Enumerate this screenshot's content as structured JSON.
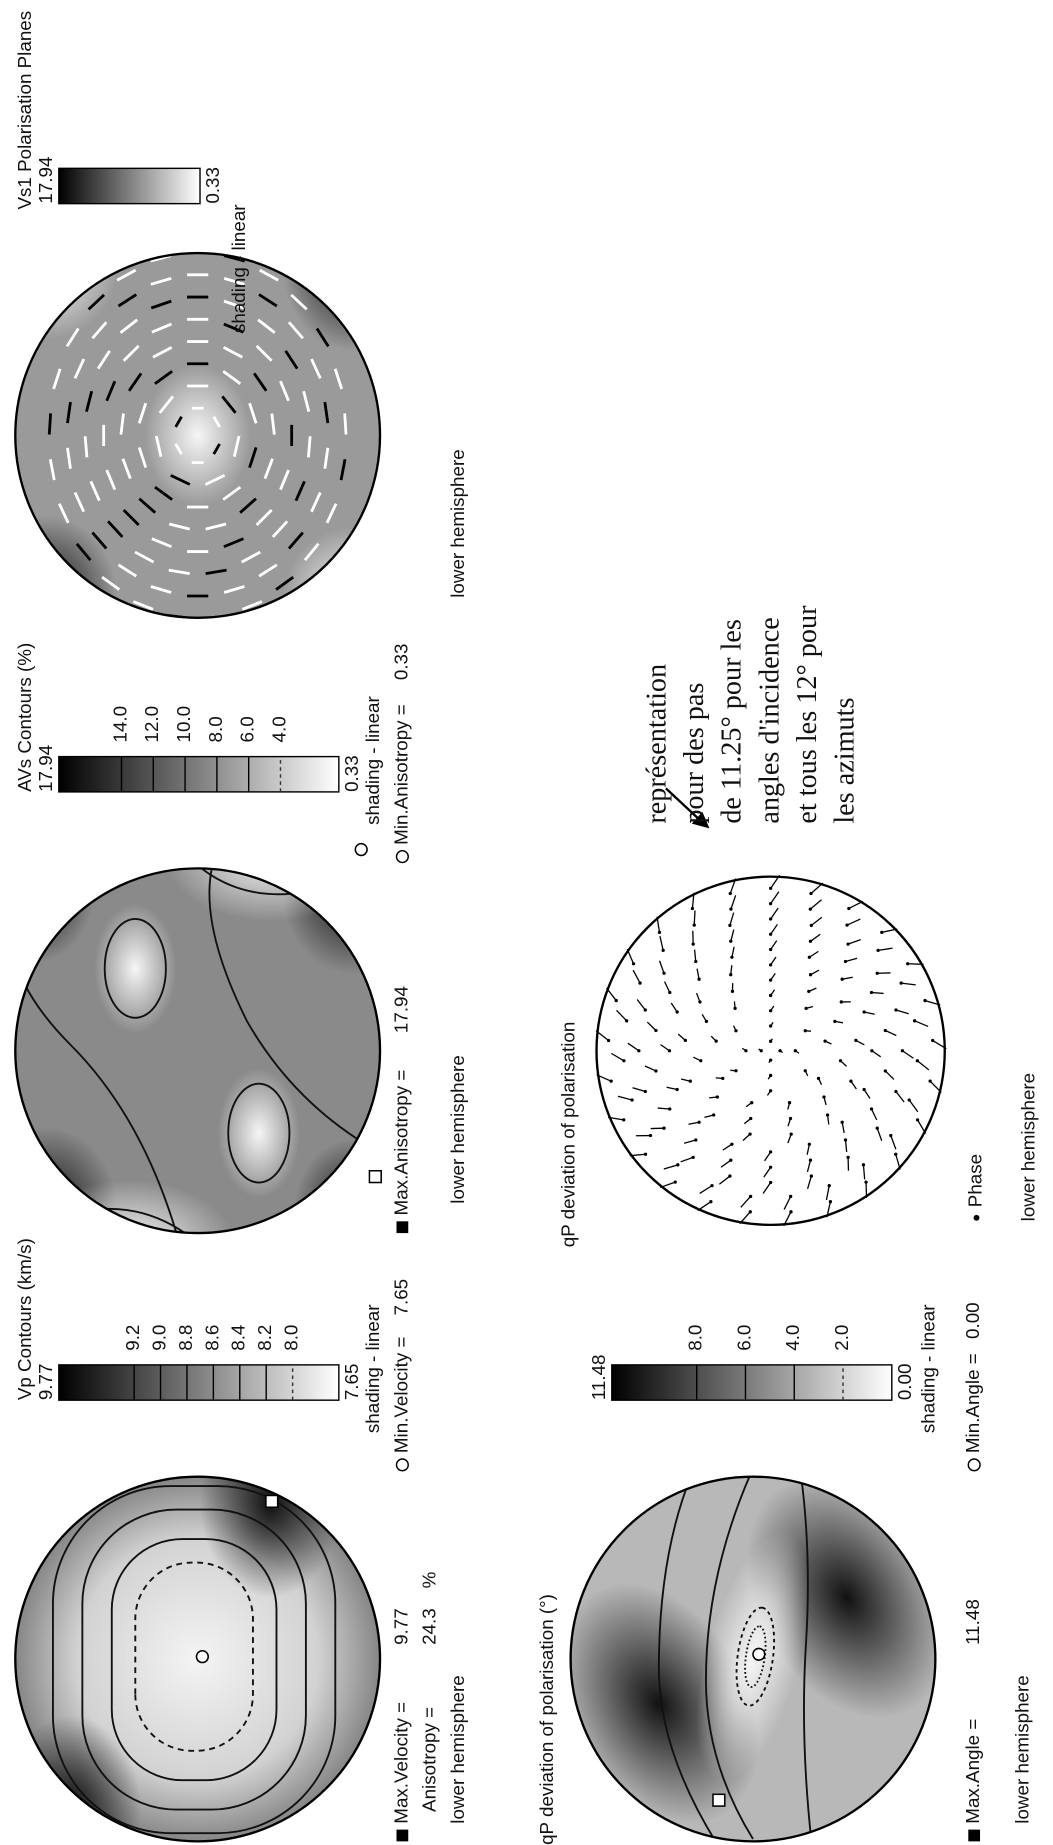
{
  "vp": {
    "colorbar": {
      "title": "Vp Contours (km/s)",
      "max": "9.77",
      "min": "7.65",
      "ticks": [
        "9.2",
        "9.0",
        "8.8",
        "8.6",
        "8.4",
        "8.2",
        "8.0"
      ],
      "shading": "shading - linear"
    },
    "max_stat": {
      "label": "Max.Velocity =",
      "value": "9.77"
    },
    "min_stat": {
      "label": "Min.Velocity =",
      "value": "7.65"
    },
    "anisotropy": {
      "label": "Anisotropy =",
      "value": "24.3",
      "unit": "%"
    },
    "hemisphere": "lower hemisphere"
  },
  "avs": {
    "colorbar": {
      "title": "AVs Contours (%)",
      "max": "17.94",
      "min": "0.33",
      "ticks": [
        "14.0",
        "12.0",
        "10.0",
        "8.0",
        "6.0",
        "4.0"
      ],
      "shading": "shading - linear"
    },
    "max_stat": {
      "label": "Max.Anisotropy =",
      "value": "17.94"
    },
    "min_stat": {
      "label": "Min.Anisotropy =",
      "value": "0.33"
    },
    "hemisphere": "lower hemisphere"
  },
  "vs1": {
    "colorbar": {
      "title": "Vs1 Polarisation Planes",
      "max": "17.94",
      "min": "0.33",
      "shading": "shading - linear"
    },
    "hemisphere": "lower hemisphere"
  },
  "qp_angle": {
    "title": "qP deviation of polarisation (°)",
    "colorbar": {
      "max": "11.48",
      "min": "0.00",
      "ticks": [
        "8.0",
        "6.0",
        "4.0",
        "2.0"
      ],
      "shading": "shading - linear"
    },
    "max_stat": {
      "label": "Max.Angle =",
      "value": "11.48"
    },
    "min_stat": {
      "label": "Min.Angle =",
      "value": "0.00"
    },
    "hemisphere": "lower hemisphere"
  },
  "qp_vectors": {
    "title": "qP deviation of polarisation",
    "legend": "Phase",
    "hemisphere": "lower hemisphere"
  },
  "annotation": {
    "lines": [
      "représentation",
      "pour des pas",
      "de 11.25° pour les",
      "angles d'incidence",
      "et tous les 12° pour",
      "les azimuts"
    ]
  }
}
